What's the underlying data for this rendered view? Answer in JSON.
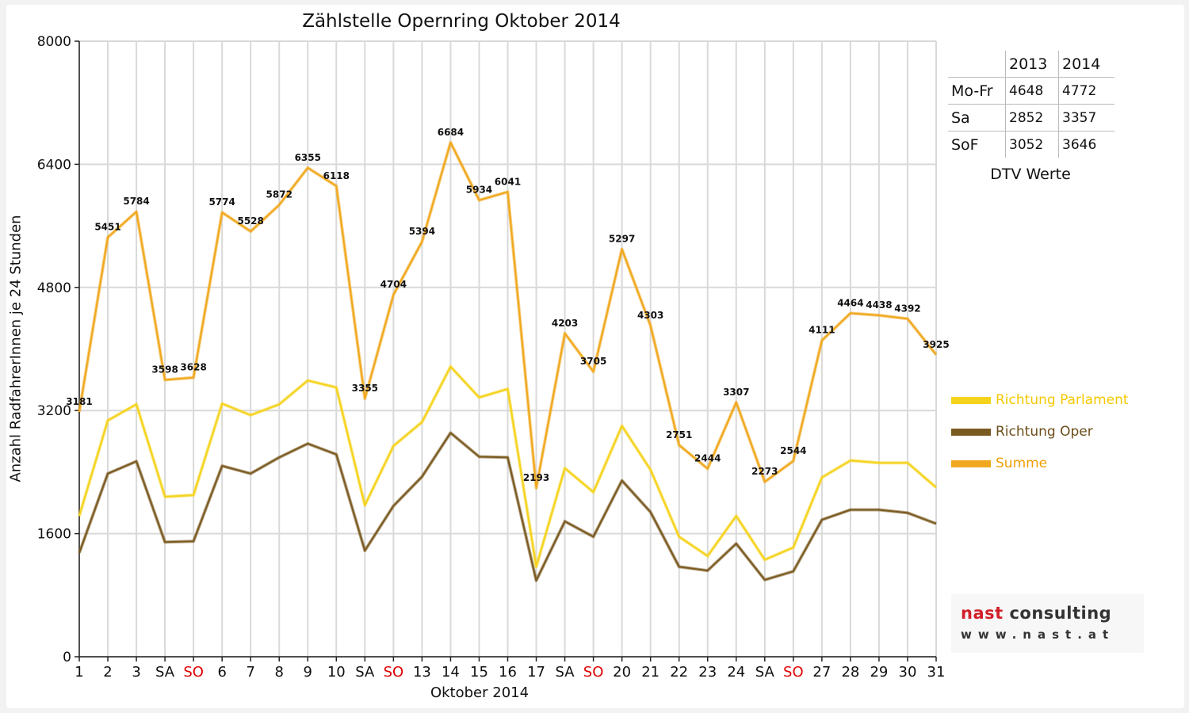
{
  "chart_data": {
    "type": "line",
    "title": "Zählstelle Opernring Oktober 2014",
    "xlabel": "Oktober 2014",
    "ylabel": "Anzahl RadfahrerInnen je 24 Stunden",
    "ylim": [
      0,
      8000
    ],
    "yticks": [
      0,
      1600,
      3200,
      4800,
      6400,
      8000
    ],
    "grid": true,
    "categories": [
      "1",
      "2",
      "3",
      "SA",
      "SO",
      "6",
      "7",
      "8",
      "9",
      "10",
      "SA",
      "SO",
      "13",
      "14",
      "15",
      "16",
      "17",
      "SA",
      "SO",
      "20",
      "21",
      "22",
      "23",
      "24",
      "SA",
      "SO",
      "27",
      "28",
      "29",
      "30",
      "31"
    ],
    "weekend_color": "#e00000",
    "legend_position": "right",
    "series": [
      {
        "name": "Richtung Parlament",
        "color": "#f5d31d",
        "values": [
          1830,
          3070,
          3280,
          2080,
          2100,
          3290,
          3140,
          3280,
          3590,
          3500,
          1970,
          2740,
          3050,
          3770,
          3370,
          3480,
          1170,
          2450,
          2140,
          3000,
          2430,
          1560,
          1310,
          1830,
          1260,
          1420,
          2330,
          2550,
          2520,
          2520,
          2200
        ]
      },
      {
        "name": "Richtung Oper",
        "color": "#7a5a20",
        "values": [
          1350,
          2380,
          2540,
          1490,
          1500,
          2480,
          2380,
          2590,
          2770,
          2630,
          1380,
          1960,
          2340,
          2910,
          2600,
          2590,
          990,
          1760,
          1560,
          2290,
          1880,
          1170,
          1120,
          1470,
          1000,
          1110,
          1780,
          1910,
          1910,
          1870,
          1730
        ]
      },
      {
        "name": "Summe",
        "color": "#f0a81e",
        "values": [
          3181,
          5451,
          5784,
          3598,
          3628,
          5774,
          5528,
          5872,
          6355,
          6118,
          3355,
          4704,
          5394,
          6684,
          5934,
          6041,
          2193,
          4203,
          3705,
          5297,
          4303,
          2751,
          2444,
          3307,
          2273,
          2544,
          4111,
          4464,
          4438,
          4392,
          3925
        ]
      }
    ],
    "data_labels": [
      "3181",
      "5451",
      "5784",
      "3598",
      "3628",
      "5774",
      "5528",
      "5872",
      "6355",
      "6118",
      "3355",
      "4704",
      "5394",
      "6684",
      "5934",
      "6041",
      "2193",
      "4203",
      "3705",
      "5297",
      "4303",
      "2751",
      "2444",
      "3307",
      "2273",
      "2544",
      "4111",
      "4464",
      "4438",
      "4392",
      "3925"
    ]
  },
  "dtv_table": {
    "headers": [
      "",
      "2013",
      "2014"
    ],
    "rows": [
      {
        "label": "Mo-Fr",
        "v2013": "4648",
        "v2014": "4772"
      },
      {
        "label": "Sa",
        "v2013": "2852",
        "v2014": "3357"
      },
      {
        "label": "SoF",
        "v2013": "3052",
        "v2014": "3646"
      }
    ],
    "caption": "DTV Werte"
  },
  "logo": {
    "brand_a": "nast",
    "brand_b": " consulting",
    "url": "www.nast.at"
  }
}
